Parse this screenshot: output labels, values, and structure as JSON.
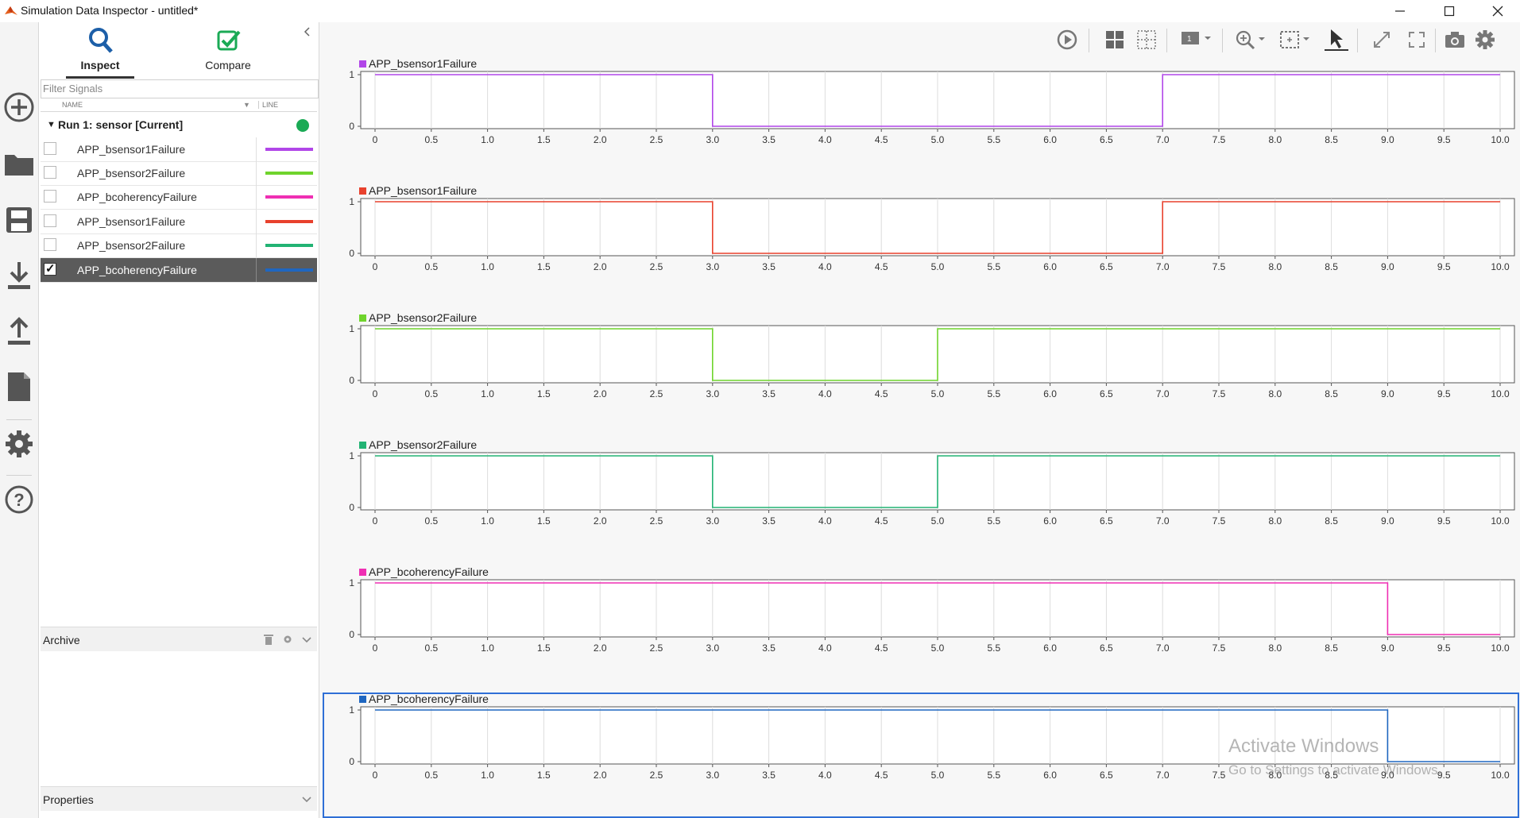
{
  "window": {
    "title": "Simulation Data Inspector - untitled*",
    "controls": [
      "minimize",
      "maximize",
      "close"
    ]
  },
  "rail": {
    "items": [
      {
        "name": "new-icon"
      },
      {
        "name": "open-folder-icon"
      },
      {
        "name": "save-icon"
      },
      {
        "name": "import-icon"
      },
      {
        "name": "export-icon"
      },
      {
        "name": "report-icon"
      },
      {
        "name": "settings-gear-icon"
      },
      {
        "name": "help-icon"
      }
    ]
  },
  "panel": {
    "tabs": [
      {
        "label": "Inspect",
        "active": true
      },
      {
        "label": "Compare",
        "active": false
      }
    ],
    "filter_placeholder": "Filter Signals",
    "columns": {
      "name": "NAME",
      "line": "LINE"
    },
    "run": {
      "label": "Run 1: sensor [Current]",
      "status_color": "#1aaa55"
    },
    "signals": [
      {
        "name": "APP_bsensor1Failure",
        "color": "#b146e8",
        "checked": false
      },
      {
        "name": "APP_bsensor2Failure",
        "color": "#6fd42c",
        "checked": false
      },
      {
        "name": "APP_bcoherencyFailure",
        "color": "#ef2fb3",
        "checked": false
      },
      {
        "name": "APP_bsensor1Failure",
        "color": "#e8412d",
        "checked": false
      },
      {
        "name": "APP_bsensor2Failure",
        "color": "#22b374",
        "checked": false
      },
      {
        "name": "APP_bcoherencyFailure",
        "color": "#1f66c0",
        "checked": true
      }
    ],
    "archive": {
      "label": "Archive"
    },
    "properties": {
      "label": "Properties"
    }
  },
  "toolbar": {
    "items": [
      {
        "name": "replay-icon"
      },
      {
        "name": "layout-grid-icon"
      },
      {
        "name": "grid-lines-icon"
      },
      {
        "name": "visualization-gallery-icon"
      },
      {
        "name": "zoom-in-icon"
      },
      {
        "name": "zoom-region-icon"
      },
      {
        "name": "cursor-icon"
      },
      {
        "name": "expand-icon"
      },
      {
        "name": "fit-to-view-icon"
      },
      {
        "name": "snapshot-camera-icon"
      },
      {
        "name": "settings-icon"
      }
    ]
  },
  "chart_data": [
    {
      "type": "line",
      "step": true,
      "title": "APP_bsensor1Failure",
      "color": "#b146e8",
      "x": [
        0,
        3,
        3,
        7,
        7,
        10
      ],
      "y": [
        1,
        1,
        0,
        0,
        1,
        1
      ],
      "xlim": [
        0,
        10
      ],
      "ylim": [
        0,
        1
      ],
      "xticks": [
        "0",
        "0.5",
        "1.0",
        "1.5",
        "2.0",
        "2.5",
        "3.0",
        "3.5",
        "4.0",
        "4.5",
        "5.0",
        "5.5",
        "6.0",
        "6.5",
        "7.0",
        "7.5",
        "8.0",
        "8.5",
        "9.0",
        "9.5",
        "10.0"
      ],
      "yticks": [
        "0",
        "1"
      ],
      "grid": true
    },
    {
      "type": "line",
      "step": true,
      "title": "APP_bsensor1Failure",
      "color": "#e8412d",
      "x": [
        0,
        3,
        3,
        7,
        7,
        10
      ],
      "y": [
        1,
        1,
        0,
        0,
        1,
        1
      ],
      "xlim": [
        0,
        10
      ],
      "ylim": [
        0,
        1
      ],
      "xticks": [
        "0",
        "0.5",
        "1.0",
        "1.5",
        "2.0",
        "2.5",
        "3.0",
        "3.5",
        "4.0",
        "4.5",
        "5.0",
        "5.5",
        "6.0",
        "6.5",
        "7.0",
        "7.5",
        "8.0",
        "8.5",
        "9.0",
        "9.5",
        "10.0"
      ],
      "yticks": [
        "0",
        "1"
      ],
      "grid": true
    },
    {
      "type": "line",
      "step": true,
      "title": "APP_bsensor2Failure",
      "color": "#6fd42c",
      "x": [
        0,
        3,
        3,
        5,
        5,
        10
      ],
      "y": [
        1,
        1,
        0,
        0,
        1,
        1
      ],
      "xlim": [
        0,
        10
      ],
      "ylim": [
        0,
        1
      ],
      "xticks": [
        "0",
        "0.5",
        "1.0",
        "1.5",
        "2.0",
        "2.5",
        "3.0",
        "3.5",
        "4.0",
        "4.5",
        "5.0",
        "5.5",
        "6.0",
        "6.5",
        "7.0",
        "7.5",
        "8.0",
        "8.5",
        "9.0",
        "9.5",
        "10.0"
      ],
      "yticks": [
        "0",
        "1"
      ],
      "grid": true
    },
    {
      "type": "line",
      "step": true,
      "title": "APP_bsensor2Failure",
      "color": "#22b374",
      "x": [
        0,
        3,
        3,
        5,
        5,
        10
      ],
      "y": [
        1,
        1,
        0,
        0,
        1,
        1
      ],
      "xlim": [
        0,
        10
      ],
      "ylim": [
        0,
        1
      ],
      "xticks": [
        "0",
        "0.5",
        "1.0",
        "1.5",
        "2.0",
        "2.5",
        "3.0",
        "3.5",
        "4.0",
        "4.5",
        "5.0",
        "5.5",
        "6.0",
        "6.5",
        "7.0",
        "7.5",
        "8.0",
        "8.5",
        "9.0",
        "9.5",
        "10.0"
      ],
      "yticks": [
        "0",
        "1"
      ],
      "grid": true
    },
    {
      "type": "line",
      "step": true,
      "title": "APP_bcoherencyFailure",
      "color": "#ef2fb3",
      "x": [
        0,
        9,
        9,
        10
      ],
      "y": [
        1,
        1,
        0,
        0
      ],
      "xlim": [
        0,
        10
      ],
      "ylim": [
        0,
        1
      ],
      "xticks": [
        "0",
        "0.5",
        "1.0",
        "1.5",
        "2.0",
        "2.5",
        "3.0",
        "3.5",
        "4.0",
        "4.5",
        "5.0",
        "5.5",
        "6.0",
        "6.5",
        "7.0",
        "7.5",
        "8.0",
        "8.5",
        "9.0",
        "9.5",
        "10.0"
      ],
      "yticks": [
        "0",
        "1"
      ],
      "grid": true
    },
    {
      "type": "line",
      "step": true,
      "title": "APP_bcoherencyFailure",
      "color": "#1f66c0",
      "selected": true,
      "x": [
        0,
        9,
        9,
        10
      ],
      "y": [
        1,
        1,
        0,
        0
      ],
      "xlim": [
        0,
        10
      ],
      "ylim": [
        0,
        1
      ],
      "xticks": [
        "0",
        "0.5",
        "1.0",
        "1.5",
        "2.0",
        "2.5",
        "3.0",
        "3.5",
        "4.0",
        "4.5",
        "5.0",
        "5.5",
        "6.0",
        "6.5",
        "7.0",
        "7.5",
        "8.0",
        "8.5",
        "9.0",
        "9.5",
        "10.0"
      ],
      "yticks": [
        "0",
        "1"
      ],
      "grid": true
    }
  ],
  "watermark": {
    "line1": "Activate Windows",
    "line2": "Go to Settings to activate Windows."
  }
}
